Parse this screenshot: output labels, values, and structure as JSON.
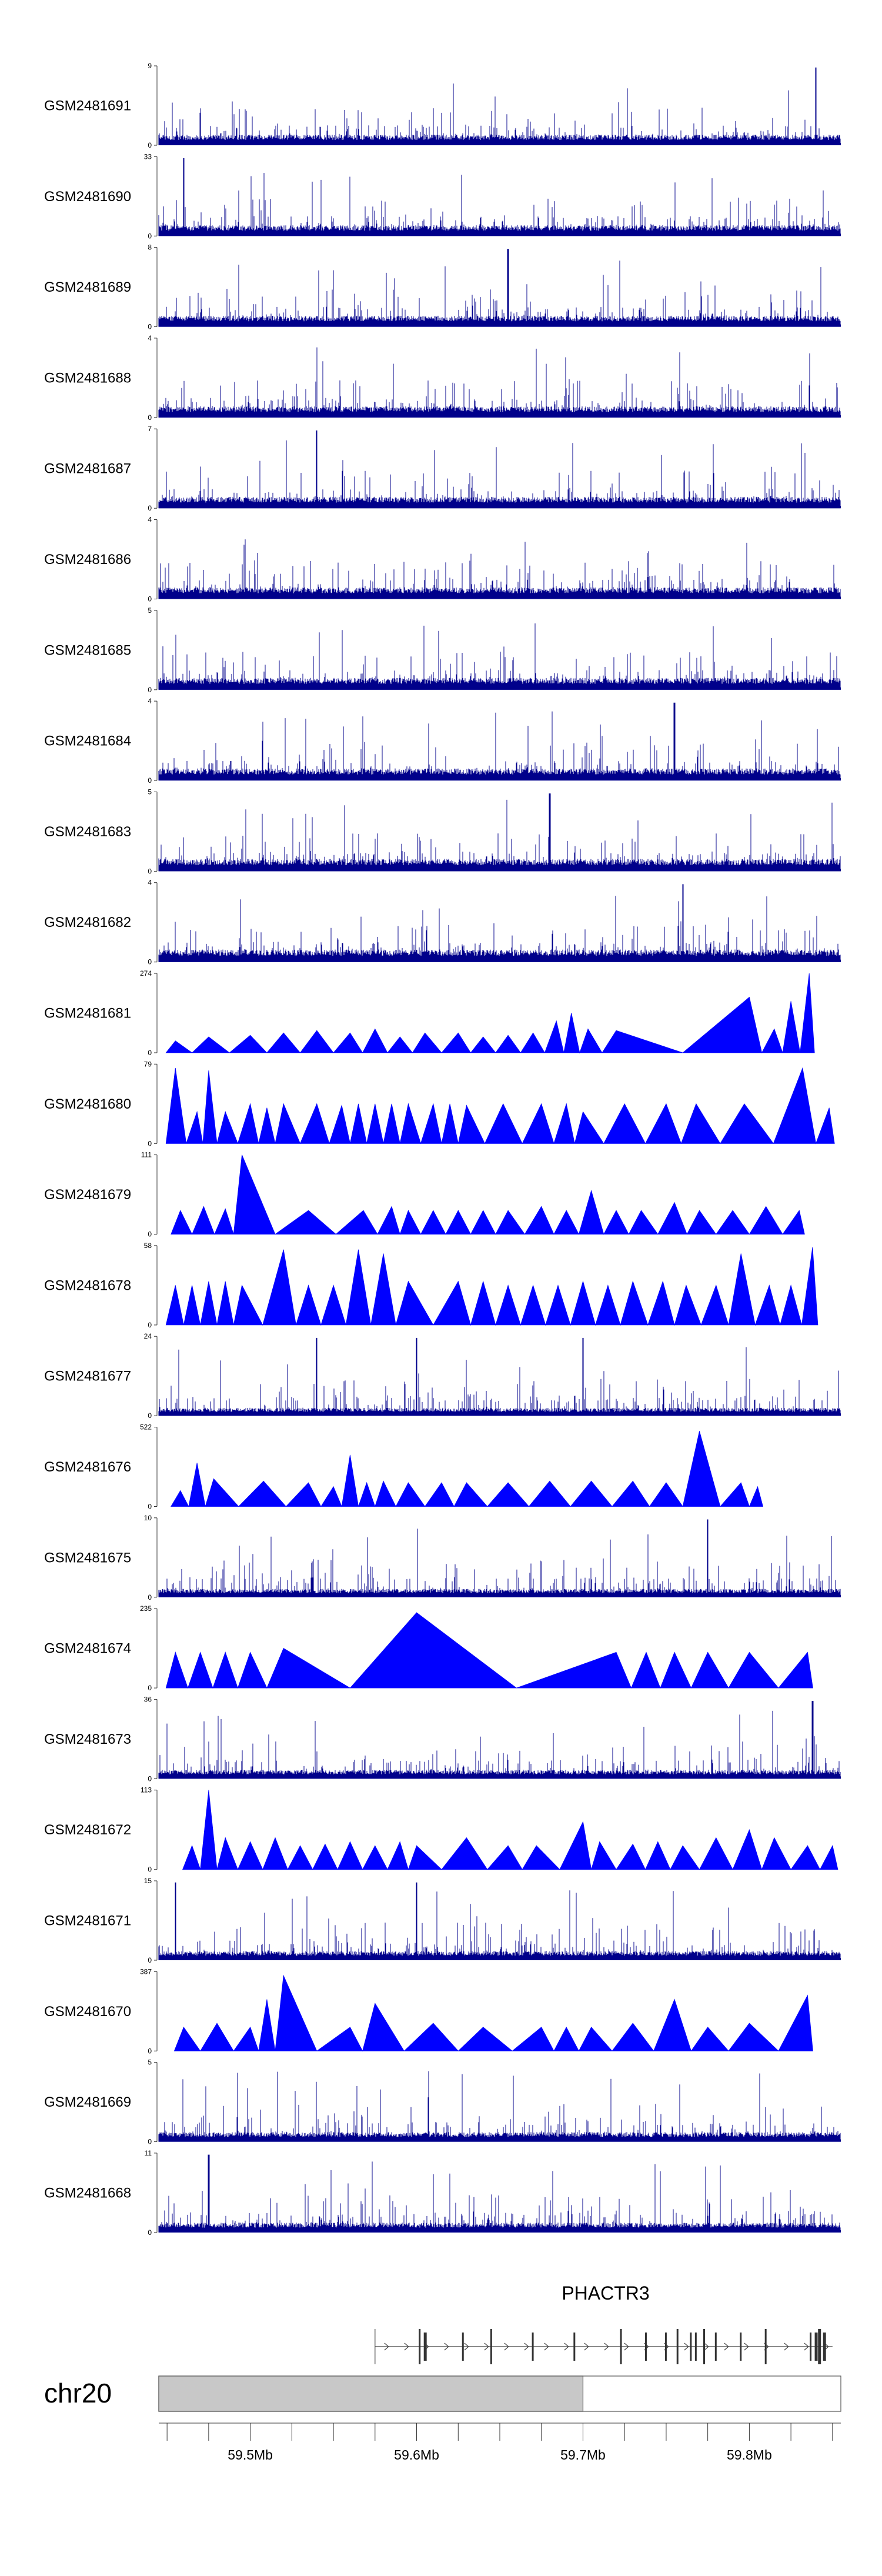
{
  "colors": {
    "signal": "#0000ff",
    "dense_signal": "#00008b",
    "axis": "#333333",
    "gene": "#444444",
    "ideogram_fill": "#c8c8c8",
    "ideogram_stroke": "#555555"
  },
  "chart_data": {
    "type": "area",
    "title": "",
    "chromosome": "chr20",
    "gene": "PHACTR3",
    "x_range_mb": [
      59.445,
      59.855
    ],
    "x_ticks_mb": [
      59.5,
      59.6,
      59.7,
      59.8
    ],
    "x_tick_labels": [
      "59.5Mb",
      "59.6Mb",
      "59.7Mb",
      "59.8Mb"
    ],
    "tracks": [
      {
        "name": "GSM2481691",
        "ymin": 0,
        "ymax": 9,
        "style": "dense",
        "peaks_mb": [
          59.84
        ]
      },
      {
        "name": "GSM2481690",
        "ymin": 0,
        "ymax": 33,
        "style": "dense",
        "peaks_mb": [
          59.46
        ]
      },
      {
        "name": "GSM2481689",
        "ymin": 0,
        "ymax": 8,
        "style": "dense",
        "peaks_mb": [
          59.655
        ]
      },
      {
        "name": "GSM2481688",
        "ymin": 0,
        "ymax": 4,
        "style": "dense",
        "peaks_mb": []
      },
      {
        "name": "GSM2481687",
        "ymin": 0,
        "ymax": 7,
        "style": "dense",
        "peaks_mb": [
          59.54
        ]
      },
      {
        "name": "GSM2481686",
        "ymin": 0,
        "ymax": 4,
        "style": "dense",
        "peaks_mb": []
      },
      {
        "name": "GSM2481685",
        "ymin": 0,
        "ymax": 5,
        "style": "dense",
        "peaks_mb": []
      },
      {
        "name": "GSM2481684",
        "ymin": 0,
        "ymax": 4,
        "style": "dense",
        "peaks_mb": [
          59.755
        ]
      },
      {
        "name": "GSM2481683",
        "ymin": 0,
        "ymax": 5,
        "style": "dense",
        "peaks_mb": [
          59.68
        ]
      },
      {
        "name": "GSM2481682",
        "ymin": 0,
        "ymax": 4,
        "style": "dense",
        "peaks_mb": [
          59.76
        ]
      },
      {
        "name": "GSM2481681",
        "ymin": 0,
        "ymax": 274,
        "style": "sparse",
        "peaks": [
          [
            59.455,
            0.15
          ],
          [
            59.475,
            0.2
          ],
          [
            59.5,
            0.22
          ],
          [
            59.52,
            0.25
          ],
          [
            59.54,
            0.28
          ],
          [
            59.56,
            0.25
          ],
          [
            59.575,
            0.3
          ],
          [
            59.59,
            0.2
          ],
          [
            59.605,
            0.25
          ],
          [
            59.625,
            0.25
          ],
          [
            59.64,
            0.2
          ],
          [
            59.655,
            0.22
          ],
          [
            59.67,
            0.25
          ],
          [
            59.684,
            0.4
          ],
          [
            59.693,
            0.5
          ],
          [
            59.703,
            0.3
          ],
          [
            59.72,
            0.28
          ],
          [
            59.8,
            0.7
          ],
          [
            59.815,
            0.3
          ],
          [
            59.825,
            0.65
          ],
          [
            59.836,
            1.0
          ]
        ]
      },
      {
        "name": "GSM2481680",
        "ymin": 0,
        "ymax": 79,
        "style": "sparse",
        "peaks": [
          [
            59.455,
            0.95
          ],
          [
            59.468,
            0.4
          ],
          [
            59.475,
            0.92
          ],
          [
            59.485,
            0.4
          ],
          [
            59.5,
            0.5
          ],
          [
            59.51,
            0.45
          ],
          [
            59.52,
            0.5
          ],
          [
            59.54,
            0.5
          ],
          [
            59.555,
            0.48
          ],
          [
            59.565,
            0.5
          ],
          [
            59.575,
            0.5
          ],
          [
            59.585,
            0.5
          ],
          [
            59.595,
            0.5
          ],
          [
            59.61,
            0.5
          ],
          [
            59.62,
            0.5
          ],
          [
            59.63,
            0.48
          ],
          [
            59.652,
            0.5
          ],
          [
            59.675,
            0.5
          ],
          [
            59.69,
            0.5
          ],
          [
            59.7,
            0.4
          ],
          [
            59.725,
            0.5
          ],
          [
            59.75,
            0.5
          ],
          [
            59.768,
            0.5
          ],
          [
            59.797,
            0.5
          ],
          [
            59.832,
            0.95
          ],
          [
            59.848,
            0.45
          ]
        ]
      },
      {
        "name": "GSM2481679",
        "ymin": 0,
        "ymax": 111,
        "style": "sparse",
        "peaks": [
          [
            59.458,
            0.3
          ],
          [
            59.472,
            0.35
          ],
          [
            59.485,
            0.32
          ],
          [
            59.495,
            1.0
          ],
          [
            59.535,
            0.3
          ],
          [
            59.568,
            0.3
          ],
          [
            59.585,
            0.35
          ],
          [
            59.595,
            0.3
          ],
          [
            59.61,
            0.3
          ],
          [
            59.625,
            0.3
          ],
          [
            59.64,
            0.3
          ],
          [
            59.655,
            0.3
          ],
          [
            59.675,
            0.35
          ],
          [
            59.69,
            0.3
          ],
          [
            59.705,
            0.55
          ],
          [
            59.72,
            0.3
          ],
          [
            59.735,
            0.3
          ],
          [
            59.755,
            0.4
          ],
          [
            59.77,
            0.3
          ],
          [
            59.79,
            0.3
          ],
          [
            59.81,
            0.35
          ],
          [
            59.83,
            0.3
          ]
        ]
      },
      {
        "name": "GSM2481678",
        "ymin": 0,
        "ymax": 58,
        "style": "sparse",
        "peaks": [
          [
            59.455,
            0.5
          ],
          [
            59.465,
            0.5
          ],
          [
            59.475,
            0.55
          ],
          [
            59.485,
            0.55
          ],
          [
            59.495,
            0.5
          ],
          [
            59.52,
            0.95
          ],
          [
            59.535,
            0.5
          ],
          [
            59.55,
            0.5
          ],
          [
            59.565,
            0.95
          ],
          [
            59.58,
            0.9
          ],
          [
            59.595,
            0.55
          ],
          [
            59.625,
            0.55
          ],
          [
            59.64,
            0.55
          ],
          [
            59.655,
            0.5
          ],
          [
            59.67,
            0.5
          ],
          [
            59.685,
            0.5
          ],
          [
            59.7,
            0.55
          ],
          [
            59.715,
            0.5
          ],
          [
            59.73,
            0.55
          ],
          [
            59.748,
            0.55
          ],
          [
            59.762,
            0.5
          ],
          [
            59.78,
            0.5
          ],
          [
            59.795,
            0.9
          ],
          [
            59.812,
            0.5
          ],
          [
            59.825,
            0.5
          ],
          [
            59.838,
            0.98
          ]
        ]
      },
      {
        "name": "GSM2481677",
        "ymin": 0,
        "ymax": 24,
        "style": "dense",
        "peaks_mb": [
          59.54,
          59.6,
          59.7
        ]
      },
      {
        "name": "GSM2481676",
        "ymin": 0,
        "ymax": 522,
        "style": "sparse",
        "peaks": [
          [
            59.458,
            0.2
          ],
          [
            59.468,
            0.55
          ],
          [
            59.478,
            0.35
          ],
          [
            59.508,
            0.32
          ],
          [
            59.535,
            0.3
          ],
          [
            59.55,
            0.25
          ],
          [
            59.56,
            0.65
          ],
          [
            59.57,
            0.3
          ],
          [
            59.58,
            0.32
          ],
          [
            59.595,
            0.3
          ],
          [
            59.615,
            0.3
          ],
          [
            59.63,
            0.3
          ],
          [
            59.655,
            0.3
          ],
          [
            59.68,
            0.32
          ],
          [
            59.705,
            0.32
          ],
          [
            59.73,
            0.32
          ],
          [
            59.75,
            0.3
          ],
          [
            59.77,
            0.95
          ],
          [
            59.795,
            0.3
          ],
          [
            59.805,
            0.25
          ]
        ]
      },
      {
        "name": "GSM2481675",
        "ymin": 0,
        "ymax": 10,
        "style": "dense",
        "peaks_mb": [
          59.775
        ]
      },
      {
        "name": "GSM2481674",
        "ymin": 0,
        "ymax": 235,
        "style": "sparse",
        "peaks": [
          [
            59.455,
            0.45
          ],
          [
            59.47,
            0.45
          ],
          [
            59.485,
            0.45
          ],
          [
            59.5,
            0.45
          ],
          [
            59.52,
            0.5
          ],
          [
            59.6,
            0.95
          ],
          [
            59.72,
            0.45
          ],
          [
            59.738,
            0.45
          ],
          [
            59.755,
            0.45
          ],
          [
            59.775,
            0.45
          ],
          [
            59.8,
            0.45
          ],
          [
            59.835,
            0.45
          ]
        ]
      },
      {
        "name": "GSM2481673",
        "ymin": 0,
        "ymax": 36,
        "style": "dense",
        "peaks_mb": [
          59.838
        ]
      },
      {
        "name": "GSM2481672",
        "ymin": 0,
        "ymax": 113,
        "style": "sparse",
        "peaks": [
          [
            59.465,
            0.3
          ],
          [
            59.475,
            1.0
          ],
          [
            59.485,
            0.4
          ],
          [
            59.5,
            0.35
          ],
          [
            59.515,
            0.4
          ],
          [
            59.53,
            0.3
          ],
          [
            59.545,
            0.32
          ],
          [
            59.56,
            0.35
          ],
          [
            59.575,
            0.3
          ],
          [
            59.59,
            0.35
          ],
          [
            59.6,
            0.3
          ],
          [
            59.63,
            0.4
          ],
          [
            59.655,
            0.3
          ],
          [
            59.672,
            0.3
          ],
          [
            59.7,
            0.6
          ],
          [
            59.71,
            0.35
          ],
          [
            59.73,
            0.32
          ],
          [
            59.745,
            0.35
          ],
          [
            59.76,
            0.3
          ],
          [
            59.78,
            0.4
          ],
          [
            59.8,
            0.5
          ],
          [
            59.815,
            0.4
          ],
          [
            59.835,
            0.3
          ],
          [
            59.85,
            0.3
          ]
        ]
      },
      {
        "name": "GSM2481671",
        "ymin": 0,
        "ymax": 15,
        "style": "dense",
        "peaks_mb": [
          59.455,
          59.6
        ]
      },
      {
        "name": "GSM2481670",
        "ymin": 0,
        "ymax": 387,
        "style": "sparse",
        "peaks": [
          [
            59.46,
            0.3
          ],
          [
            59.48,
            0.35
          ],
          [
            59.5,
            0.3
          ],
          [
            59.51,
            0.65
          ],
          [
            59.52,
            0.95
          ],
          [
            59.56,
            0.3
          ],
          [
            59.575,
            0.6
          ],
          [
            59.61,
            0.35
          ],
          [
            59.64,
            0.3
          ],
          [
            59.675,
            0.3
          ],
          [
            59.69,
            0.3
          ],
          [
            59.705,
            0.3
          ],
          [
            59.73,
            0.35
          ],
          [
            59.755,
            0.65
          ],
          [
            59.775,
            0.3
          ],
          [
            59.8,
            0.35
          ],
          [
            59.835,
            0.7
          ]
        ]
      },
      {
        "name": "GSM2481669",
        "ymin": 0,
        "ymax": 5,
        "style": "dense",
        "peaks_mb": []
      },
      {
        "name": "GSM2481668",
        "ymin": 0,
        "ymax": 11,
        "style": "dense",
        "peaks_mb": [
          59.475
        ]
      }
    ],
    "gene_model": {
      "start_mb": 59.575,
      "end_mb": 59.85,
      "strand": "+",
      "exons_mb": [
        59.602,
        59.605,
        59.628,
        59.645,
        59.67,
        59.695,
        59.723,
        59.738,
        59.75,
        59.757,
        59.765,
        59.768,
        59.773,
        59.78,
        59.795,
        59.81,
        59.837,
        59.84,
        59.842,
        59.845
      ]
    },
    "ideogram": {
      "shaded_range_mb": [
        59.445,
        59.7
      ]
    }
  }
}
